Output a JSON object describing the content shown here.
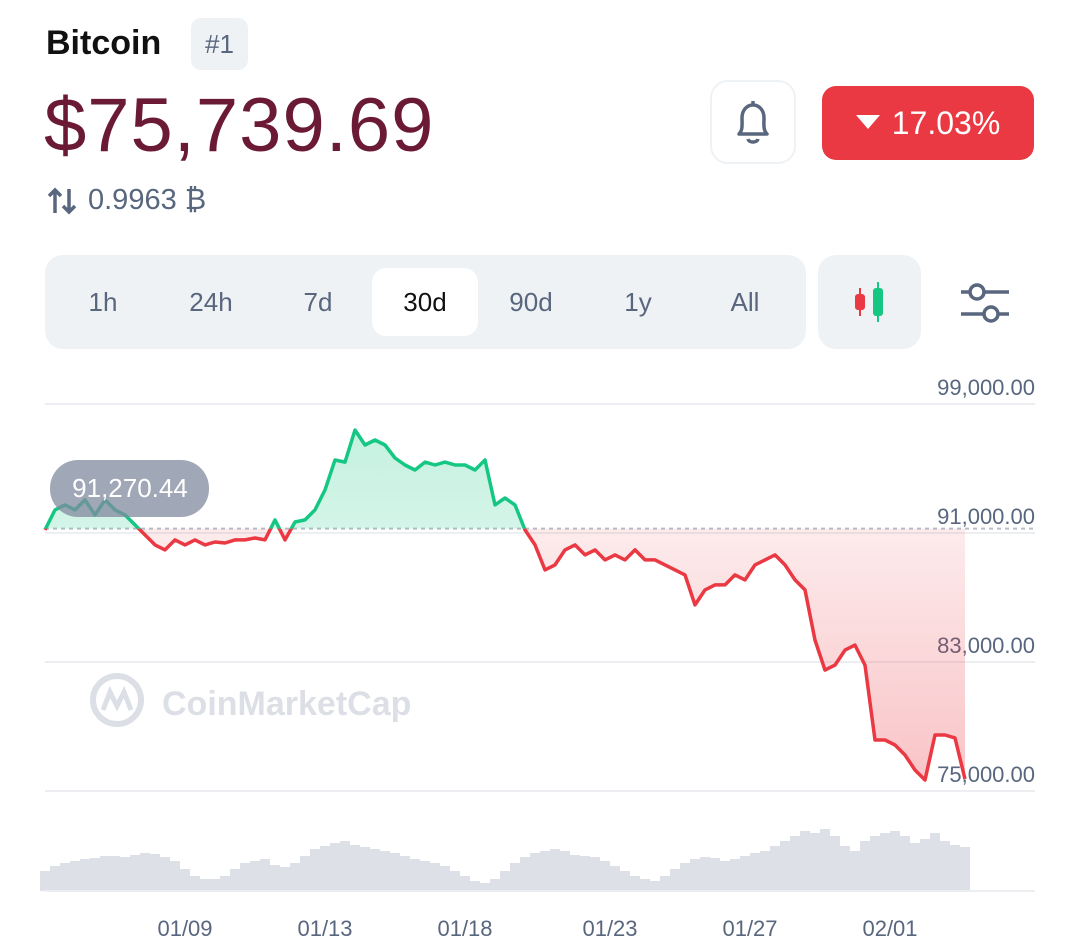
{
  "header": {
    "name": "Bitcoin",
    "rank": "#1",
    "price": "$75,739.69",
    "btc_ratio": "0.9963 ₿",
    "change": "17.03%"
  },
  "tabs": {
    "options": [
      "1h",
      "24h",
      "7d",
      "30d",
      "90d",
      "1y",
      "All"
    ],
    "selected": 3
  },
  "watermark": "CoinMarketCap",
  "chart_data": {
    "type": "line",
    "values": [
      91190,
      92430,
      92740,
      92430,
      93050,
      92120,
      93050,
      92430,
      92120,
      91500,
      90880,
      90260,
      89950,
      90570,
      90260,
      90570,
      90260,
      90440,
      90380,
      90570,
      90570,
      90690,
      90570,
      91810,
      90570,
      91680,
      91810,
      92430,
      93670,
      95530,
      95400,
      97390,
      96460,
      96770,
      96460,
      95650,
      95220,
      94910,
      95400,
      95220,
      95400,
      95220,
      95220,
      94910,
      95530,
      92740,
      93170,
      92740,
      91190,
      90260,
      88710,
      89020,
      89950,
      90260,
      89640,
      89950,
      89330,
      89640,
      89330,
      89950,
      89330,
      89330,
      89020,
      88710,
      88400,
      86540,
      87470,
      87780,
      87780,
      88400,
      88090,
      89020,
      89330,
      89640,
      89020,
      88090,
      87470,
      84360,
      82500,
      82810,
      83740,
      84050,
      82810,
      78160,
      78160,
      77850,
      77230,
      76300,
      75680,
      78470,
      78470,
      78290,
      75740
    ],
    "up_color": "#16c784",
    "down_color": "#ea3943",
    "baseline": {
      "value": 91270.44,
      "label": "91,270.44"
    },
    "ylim": [
      75000,
      99000
    ],
    "yticks": [
      {
        "value": 75000,
        "label": "75,000.00"
      },
      {
        "value": 83000,
        "label": "83,000.00"
      },
      {
        "value": 91000,
        "label": "91,000.00"
      },
      {
        "value": 99000,
        "label": "99,000.00"
      }
    ],
    "grid": true,
    "xlim": [
      0,
      92
    ],
    "xticks": [
      {
        "value": 14,
        "label": "01/09"
      },
      {
        "value": 28,
        "label": "01/13"
      },
      {
        "value": 42,
        "label": "01/18"
      },
      {
        "value": 56.5,
        "label": "01/23"
      },
      {
        "value": 70.5,
        "label": "01/27"
      },
      {
        "value": 84.5,
        "label": "02/01"
      }
    ],
    "volume": {
      "color": "#dde1e7",
      "ylim": [
        0,
        100
      ],
      "values": [
        20,
        25,
        28,
        30,
        32,
        33,
        35,
        35,
        34,
        36,
        38,
        37,
        34,
        30,
        22,
        15,
        12,
        12,
        15,
        22,
        28,
        30,
        32,
        26,
        24,
        28,
        35,
        42,
        45,
        48,
        50,
        46,
        44,
        42,
        40,
        38,
        35,
        32,
        30,
        28,
        25,
        20,
        15,
        10,
        8,
        12,
        20,
        28,
        34,
        38,
        40,
        42,
        40,
        36,
        35,
        34,
        30,
        25,
        20,
        15,
        12,
        10,
        15,
        22,
        28,
        32,
        34,
        33,
        30,
        32,
        35,
        38,
        40,
        45,
        50,
        55,
        60,
        58,
        62,
        55,
        45,
        40,
        50,
        55,
        58,
        60,
        55,
        48,
        52,
        58,
        50,
        46,
        44
      ]
    }
  }
}
